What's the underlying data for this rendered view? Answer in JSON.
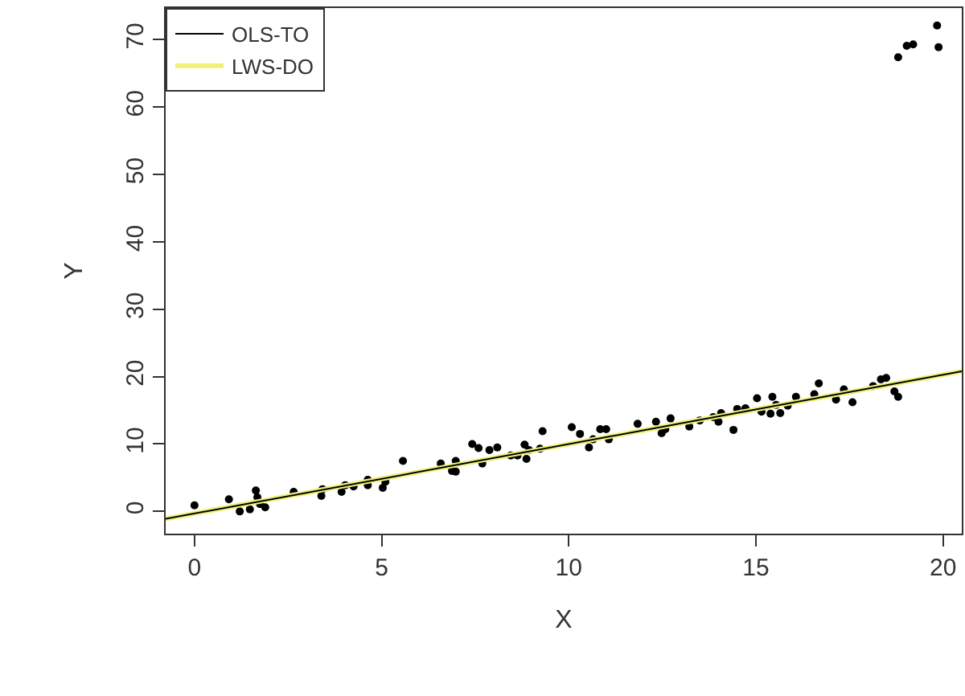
{
  "chart_data": {
    "type": "scatter",
    "xlabel": "X",
    "ylabel": "Y",
    "xlim": [
      -0.77,
      20.5
    ],
    "ylim": [
      -3.3,
      74.7
    ],
    "xticks": [
      0,
      5,
      10,
      15,
      20
    ],
    "yticks": [
      0,
      10,
      20,
      30,
      40,
      50,
      60,
      70
    ],
    "legend": "top left",
    "marker": "circle",
    "series": [
      {
        "color": "#000000",
        "x": [
          0,
          0.92,
          1.21,
          1.48,
          1.64,
          1.68,
          1.75,
          1.89,
          2.65,
          3.42,
          3.39,
          3.93,
          4.03,
          4.25,
          4.63,
          4.63,
          5.03,
          5.1,
          5.57,
          6.58,
          6.88,
          6.98,
          6.98,
          7.42,
          7.59,
          7.69,
          7.88,
          8.09,
          8.45,
          8.63,
          8.82,
          8.87,
          8.94,
          9.23,
          9.3,
          10.08,
          10.3,
          10.54,
          10.65,
          10.84,
          11.0,
          11.07,
          11.84,
          12.33,
          12.48,
          12.58,
          12.72,
          13.22,
          13.5,
          13.86,
          14.0,
          14.07,
          14.4,
          14.5,
          14.72,
          15.03,
          15.15,
          15.39,
          15.44,
          15.54,
          15.65,
          15.85,
          16.07,
          16.56,
          16.68,
          17.14,
          17.35,
          17.58,
          18.13,
          18.34,
          18.48,
          18.7,
          18.8,
          18.8,
          19.03,
          19.2,
          19.84,
          19.88
        ],
        "values": [
          0.9,
          1.8,
          0,
          0.3,
          3.1,
          2.1,
          1.1,
          0.6,
          2.9,
          3.3,
          2.3,
          2.9,
          3.9,
          3.7,
          3.9,
          4.7,
          3.5,
          4.4,
          7.5,
          7.1,
          6.0,
          7.5,
          5.9,
          10.0,
          9.4,
          7.1,
          9.1,
          9.5,
          8.3,
          8.3,
          9.9,
          7.8,
          9.1,
          9.3,
          11.9,
          12.5,
          11.5,
          9.5,
          10.7,
          12.2,
          12.2,
          10.7,
          13.0,
          13.3,
          11.6,
          12.2,
          13.8,
          12.6,
          13.5,
          14.0,
          13.3,
          14.6,
          12.1,
          15.2,
          15.3,
          16.8,
          14.8,
          14.5,
          17.0,
          15.8,
          14.6,
          15.7,
          17.0,
          17.4,
          19.0,
          16.6,
          18.1,
          16.2,
          18.6,
          19.6,
          19.8,
          17.8,
          17.0,
          67.4,
          69.1,
          69.3,
          72.1,
          68.9
        ]
      },
      {
        "type": "line",
        "name": "OLS-TO",
        "color": "#000000",
        "line_style": "solid",
        "marker": "none",
        "x": [
          -0.77,
          20.5
        ],
        "values": [
          -1.1,
          20.8
        ]
      },
      {
        "type": "line",
        "name": "LWS-DO",
        "color": "#f0f07a",
        "line_style": "solid",
        "marker": "none",
        "x": [
          -0.77,
          20.5
        ],
        "values": [
          -1.1,
          20.8
        ]
      }
    ]
  }
}
